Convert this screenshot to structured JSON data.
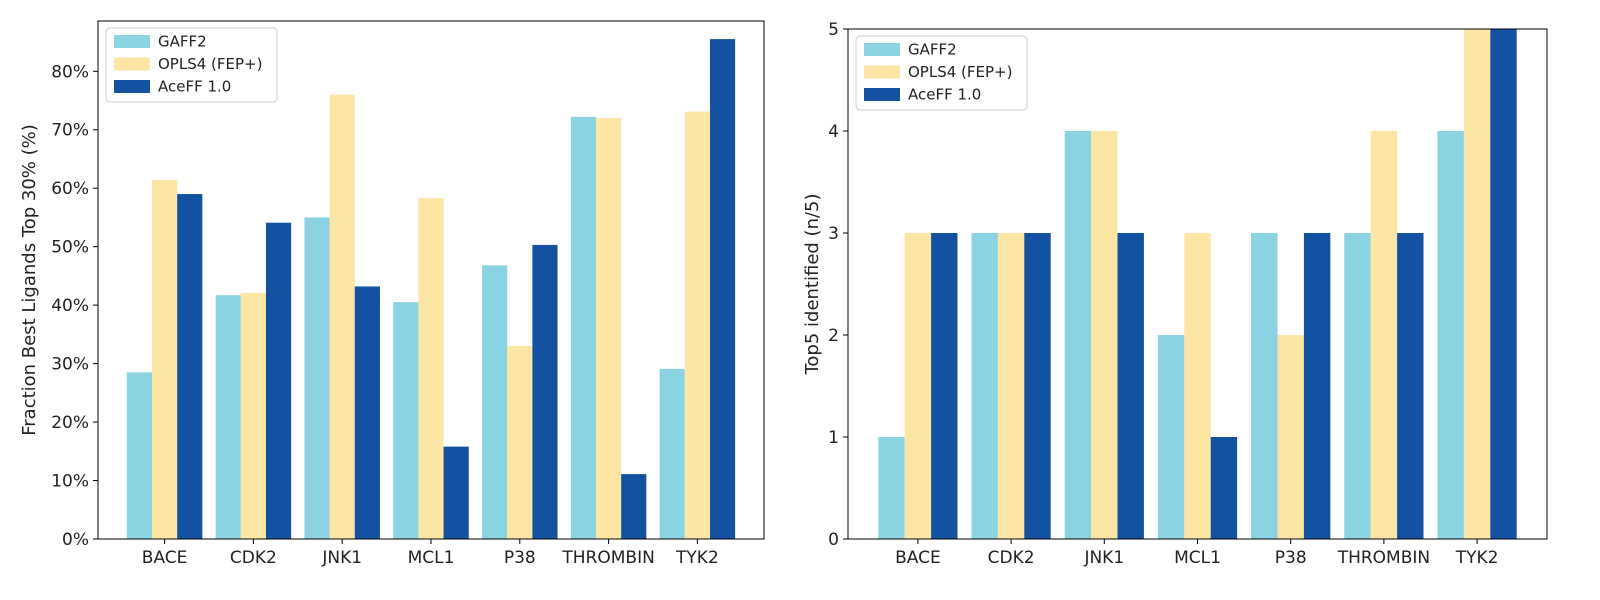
{
  "chart_data": [
    {
      "type": "bar",
      "title": "",
      "xlabel": "",
      "ylabel": "Fraction Best Ligands Top 30% (%)",
      "ylim": [
        0,
        88.6
      ],
      "yticks": [
        0,
        10,
        20,
        30,
        40,
        50,
        60,
        70,
        80
      ],
      "ytick_labels": [
        "0%",
        "10%",
        "20%",
        "30%",
        "40%",
        "50%",
        "60%",
        "70%",
        "80%"
      ],
      "categories": [
        "BACE",
        "CDK2",
        "JNK1",
        "MCL1",
        "P38",
        "THROMBIN",
        "TYK2"
      ],
      "series": [
        {
          "name": "GAFF2",
          "color": "#89d3e3",
          "values": [
            28.5,
            41.7,
            55.0,
            40.5,
            46.8,
            72.2,
            29.1
          ]
        },
        {
          "name": "OPLS4 (FEP+)",
          "color": "#fde5a4",
          "values": [
            61.4,
            42.1,
            76.0,
            58.3,
            33.0,
            72.0,
            73.1
          ]
        },
        {
          "name": "AceFF 1.0",
          "color": "#1352a0",
          "values": [
            59.0,
            54.1,
            43.2,
            15.8,
            50.3,
            11.1,
            85.5
          ]
        }
      ],
      "legend": "top-left",
      "grid": false
    },
    {
      "type": "bar",
      "title": "",
      "xlabel": "",
      "ylabel": "Top5 identified (n/5)",
      "ylim": [
        0,
        5
      ],
      "yticks": [
        0,
        1,
        2,
        3,
        4,
        5
      ],
      "ytick_labels": [
        "0",
        "1",
        "2",
        "3",
        "4",
        "5"
      ],
      "categories": [
        "BACE",
        "CDK2",
        "JNK1",
        "MCL1",
        "P38",
        "THROMBIN",
        "TYK2"
      ],
      "series": [
        {
          "name": "GAFF2",
          "color": "#89d3e3",
          "values": [
            1,
            3,
            4,
            2,
            3,
            3,
            4
          ]
        },
        {
          "name": "OPLS4 (FEP+)",
          "color": "#fde5a4",
          "values": [
            3,
            3,
            4,
            3,
            2,
            4,
            5
          ]
        },
        {
          "name": "AceFF 1.0",
          "color": "#1352a0",
          "values": [
            3,
            3,
            3,
            1,
            3,
            3,
            5
          ]
        }
      ],
      "legend": "top-left",
      "grid": false
    }
  ]
}
